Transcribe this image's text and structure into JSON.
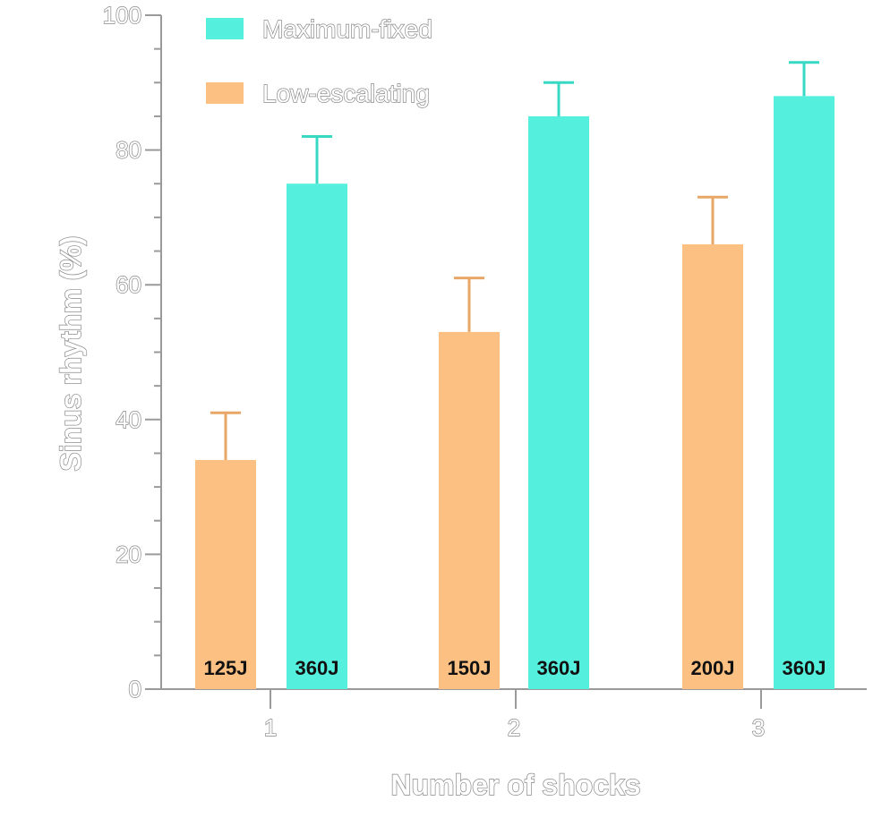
{
  "chart_data": {
    "type": "bar",
    "xlabel": "Number of shocks",
    "ylabel": "Sinus rhythm (%)",
    "ylim": [
      0,
      100
    ],
    "yticks": [
      "0",
      "20",
      "40",
      "60",
      "80",
      "100"
    ],
    "categories": [
      "1",
      "2",
      "3"
    ],
    "grid": false,
    "legend_position": "top-left",
    "series": [
      {
        "name": "Low-escalating",
        "color": "#fcc083",
        "values": [
          34,
          53,
          66
        ],
        "error_plus": [
          7,
          8,
          7
        ],
        "bar_labels": [
          "125J",
          "150J",
          "200J"
        ]
      },
      {
        "name": "Maximum-fixed",
        "color": "#55f0dd",
        "values": [
          75,
          85,
          88
        ],
        "error_plus": [
          7,
          5,
          5
        ],
        "bar_labels": [
          "360J",
          "360J",
          "360J"
        ]
      }
    ],
    "legend_order": [
      "Maximum-fixed",
      "Low-escalating"
    ]
  }
}
